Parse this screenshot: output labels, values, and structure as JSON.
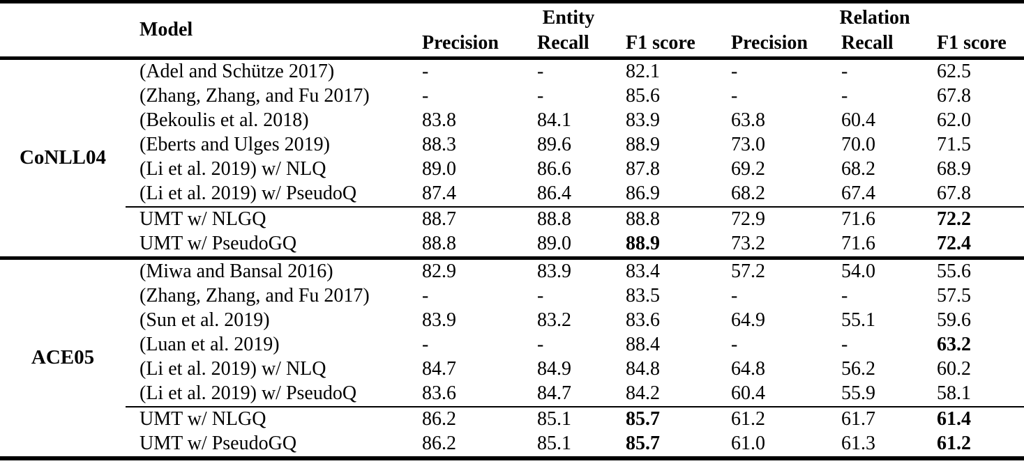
{
  "colors": {
    "text": "#000000",
    "background": "#ffffff",
    "rule": "#000000"
  },
  "table": {
    "col_headers": {
      "model": "Model",
      "entity_group": "Entity",
      "relation_group": "Relation"
    },
    "sub_headers": [
      "Precision",
      "Recall",
      "F1 score",
      "Precision",
      "Recall",
      "F1 score"
    ],
    "sections": [
      {
        "dataset": "CoNLL04",
        "rows": [
          {
            "model": "(Adel and Schütze 2017)",
            "values": [
              "-",
              "-",
              "82.1",
              "-",
              "-",
              "62.5"
            ],
            "bold": []
          },
          {
            "model": "(Zhang, Zhang, and Fu 2017)",
            "values": [
              "-",
              "-",
              "85.6",
              "-",
              "-",
              "67.8"
            ],
            "bold": []
          },
          {
            "model": "(Bekoulis et al. 2018)",
            "values": [
              "83.8",
              "84.1",
              "83.9",
              "63.8",
              "60.4",
              "62.0"
            ],
            "bold": []
          },
          {
            "model": "(Eberts and Ulges 2019)",
            "values": [
              "88.3",
              "89.6",
              "88.9",
              "73.0",
              "70.0",
              "71.5"
            ],
            "bold": []
          },
          {
            "model": "(Li et al. 2019) w/ NLQ",
            "values": [
              "89.0",
              "86.6",
              "87.8",
              "69.2",
              "68.2",
              "68.9"
            ],
            "bold": []
          },
          {
            "model": "(Li et al. 2019) w/ PseudoQ",
            "values": [
              "87.4",
              "86.4",
              "86.9",
              "68.2",
              "67.4",
              "67.8"
            ],
            "bold": []
          },
          {
            "model": "UMT w/ NLGQ",
            "values": [
              "88.7",
              "88.8",
              "88.8",
              "72.9",
              "71.6",
              "72.2"
            ],
            "bold": [
              5
            ],
            "rule_above": true
          },
          {
            "model": "UMT w/ PseudoGQ",
            "values": [
              "88.8",
              "89.0",
              "88.9",
              "73.2",
              "71.6",
              "72.4"
            ],
            "bold": [
              2,
              5
            ]
          }
        ]
      },
      {
        "dataset": "ACE05",
        "rows": [
          {
            "model": "(Miwa and Bansal 2016)",
            "values": [
              "82.9",
              "83.9",
              "83.4",
              "57.2",
              "54.0",
              "55.6"
            ],
            "bold": []
          },
          {
            "model": "(Zhang, Zhang, and Fu 2017)",
            "values": [
              "-",
              "-",
              "83.5",
              "-",
              "-",
              "57.5"
            ],
            "bold": []
          },
          {
            "model": "(Sun et al. 2019)",
            "values": [
              "83.9",
              "83.2",
              "83.6",
              "64.9",
              "55.1",
              "59.6"
            ],
            "bold": []
          },
          {
            "model": "(Luan et al. 2019)",
            "values": [
              "-",
              "-",
              "88.4",
              "-",
              "-",
              "63.2"
            ],
            "bold": [
              5
            ]
          },
          {
            "model": "(Li et al. 2019) w/ NLQ",
            "values": [
              "84.7",
              "84.9",
              "84.8",
              "64.8",
              "56.2",
              "60.2"
            ],
            "bold": []
          },
          {
            "model": "(Li et al. 2019) w/ PseudoQ",
            "values": [
              "83.6",
              "84.7",
              "84.2",
              "60.4",
              "55.9",
              "58.1"
            ],
            "bold": []
          },
          {
            "model": "UMT w/ NLGQ",
            "values": [
              "86.2",
              "85.1",
              "85.7",
              "61.2",
              "61.7",
              "61.4"
            ],
            "bold": [
              2,
              5
            ],
            "rule_above": true
          },
          {
            "model": "UMT w/ PseudoGQ",
            "values": [
              "86.2",
              "85.1",
              "85.7",
              "61.0",
              "61.3",
              "61.2"
            ],
            "bold": [
              2,
              5
            ]
          }
        ]
      }
    ]
  }
}
